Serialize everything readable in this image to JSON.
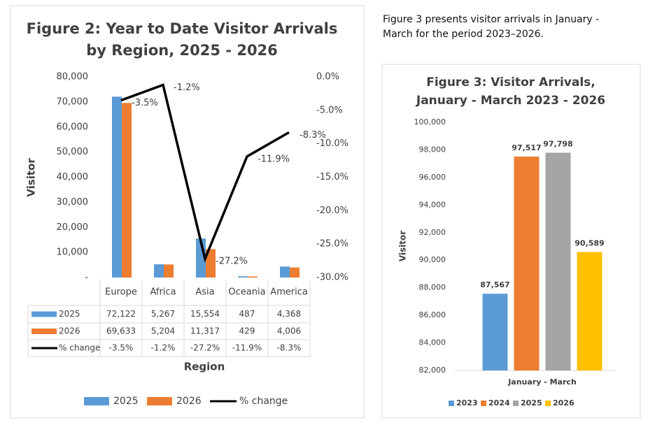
{
  "caption": "Figure 3 presents visitor arrivals in January - March for the period 2023–2026.",
  "chart_data": [
    {
      "type": "bar",
      "title": [
        "Figure 2: Year to Date Visitor Arrivals",
        "by Region,  2025 - 2026"
      ],
      "y_label": "Visitor",
      "x_label": "Region",
      "categories": [
        "Europe",
        "Africa",
        "Asia",
        "Oceania",
        "America"
      ],
      "series": [
        {
          "name": "2025",
          "color": "#5b9bd5",
          "values": [
            72122,
            5267,
            15554,
            487,
            4368
          ],
          "value_labels": [
            "72,122",
            "5,267",
            "15,554",
            "487",
            "4,368"
          ]
        },
        {
          "name": "2026",
          "color": "#ed7d31",
          "values": [
            69633,
            5204,
            11317,
            429,
            4006
          ],
          "value_labels": [
            "69,633",
            "5,204",
            "11,317",
            "429",
            "4,006"
          ]
        },
        {
          "name": "% change",
          "color": "#000000",
          "type": "line",
          "axis": "y2",
          "values": [
            -3.5,
            -1.2,
            -27.2,
            -11.9,
            -8.3
          ],
          "value_labels": [
            "-3.5%",
            "-1.2%",
            "-27.2%",
            "-11.9%",
            "-8.3%"
          ]
        }
      ],
      "ylim": [
        0,
        80000
      ],
      "yticks": [
        {
          "value": 0,
          "label": "-"
        },
        {
          "value": 10000,
          "label": "10,000"
        },
        {
          "value": 20000,
          "label": "20,000"
        },
        {
          "value": 30000,
          "label": "30,000"
        },
        {
          "value": 40000,
          "label": "40,000"
        },
        {
          "value": 50000,
          "label": "50,000"
        },
        {
          "value": 60000,
          "label": "60,000"
        },
        {
          "value": 70000,
          "label": "70,000"
        },
        {
          "value": 80000,
          "label": "80,000"
        }
      ],
      "y2lim": [
        -30,
        0
      ],
      "y2ticks": [
        {
          "value": 0,
          "label": "0.0%"
        },
        {
          "value": -5,
          "label": "-5.0%"
        },
        {
          "value": -10,
          "label": "-10.0%"
        },
        {
          "value": -15,
          "label": "-15.0%"
        },
        {
          "value": -20,
          "label": "-20.0%"
        },
        {
          "value": -25,
          "label": "-25.0%"
        },
        {
          "value": -30,
          "label": "-30.0%"
        }
      ]
    },
    {
      "type": "bar",
      "title": [
        "Figure 3: Visitor Arrivals,",
        "January - March 2023 - 2026"
      ],
      "y_label": "Visitor",
      "categories": [
        "January - March"
      ],
      "series": [
        {
          "name": "2023",
          "color": "#5b9bd5",
          "values": [
            87567
          ],
          "value_labels": [
            "87,567"
          ]
        },
        {
          "name": "2024",
          "color": "#ed7d31",
          "values": [
            97517
          ],
          "value_labels": [
            "97,517"
          ]
        },
        {
          "name": "2025",
          "color": "#a5a5a5",
          "values": [
            97798
          ],
          "value_labels": [
            "97,798"
          ]
        },
        {
          "name": "2026",
          "color": "#ffc000",
          "values": [
            90589
          ],
          "value_labels": [
            "90,589"
          ]
        }
      ],
      "ylim": [
        82000,
        100000
      ],
      "yticks": [
        {
          "value": 82000,
          "label": "82,000"
        },
        {
          "value": 84000,
          "label": "84,000"
        },
        {
          "value": 86000,
          "label": "86,000"
        },
        {
          "value": 88000,
          "label": "88,000"
        },
        {
          "value": 90000,
          "label": "90,000"
        },
        {
          "value": 92000,
          "label": "92,000"
        },
        {
          "value": 94000,
          "label": "94,000"
        },
        {
          "value": 96000,
          "label": "96,000"
        },
        {
          "value": 98000,
          "label": "98,000"
        },
        {
          "value": 100000,
          "label": "100,000"
        }
      ]
    }
  ]
}
